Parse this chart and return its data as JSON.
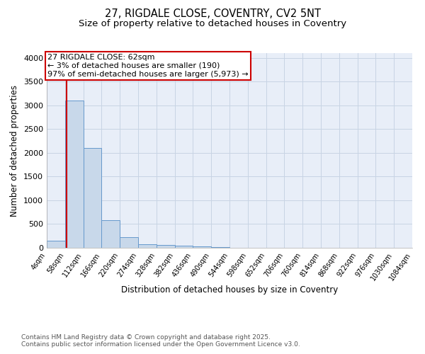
{
  "title1": "27, RIGDALE CLOSE, COVENTRY, CV2 5NT",
  "title2": "Size of property relative to detached houses in Coventry",
  "xlabel": "Distribution of detached houses by size in Coventry",
  "ylabel": "Number of detached properties",
  "footnote1": "Contains HM Land Registry data © Crown copyright and database right 2025.",
  "footnote2": "Contains public sector information licensed under the Open Government Licence v3.0.",
  "bin_labels": [
    "4sqm",
    "58sqm",
    "112sqm",
    "166sqm",
    "220sqm",
    "274sqm",
    "328sqm",
    "382sqm",
    "436sqm",
    "490sqm",
    "544sqm",
    "598sqm",
    "652sqm",
    "706sqm",
    "760sqm",
    "814sqm",
    "868sqm",
    "922sqm",
    "976sqm",
    "1030sqm",
    "1084sqm"
  ],
  "bin_edges": [
    4,
    58,
    112,
    166,
    220,
    274,
    328,
    382,
    436,
    490,
    544,
    598,
    652,
    706,
    760,
    814,
    868,
    922,
    976,
    1030,
    1084
  ],
  "bar_heights": [
    150,
    3100,
    2100,
    580,
    220,
    75,
    55,
    40,
    30,
    10,
    5,
    3,
    2,
    1,
    1,
    1,
    0,
    0,
    0,
    0
  ],
  "bar_color": "#c8d8ea",
  "bar_edgecolor": "#6699cc",
  "property_value": 62,
  "property_line_color": "#cc0000",
  "annotation_line1": "27 RIGDALE CLOSE: 62sqm",
  "annotation_line2": "← 3% of detached houses are smaller (190)",
  "annotation_line3": "97% of semi-detached houses are larger (5,973) →",
  "annotation_box_color": "#ffffff",
  "annotation_box_edgecolor": "#cc0000",
  "ylim": [
    0,
    4100
  ],
  "yticks": [
    0,
    500,
    1000,
    1500,
    2000,
    2500,
    3000,
    3500,
    4000
  ],
  "grid_color": "#c8d4e4",
  "background_color": "#e8eef8",
  "title_fontsize": 10.5,
  "subtitle_fontsize": 9.5,
  "footnote_fontsize": 6.5,
  "bar_fontsize": 8.0,
  "annotation_fontsize": 8.0
}
